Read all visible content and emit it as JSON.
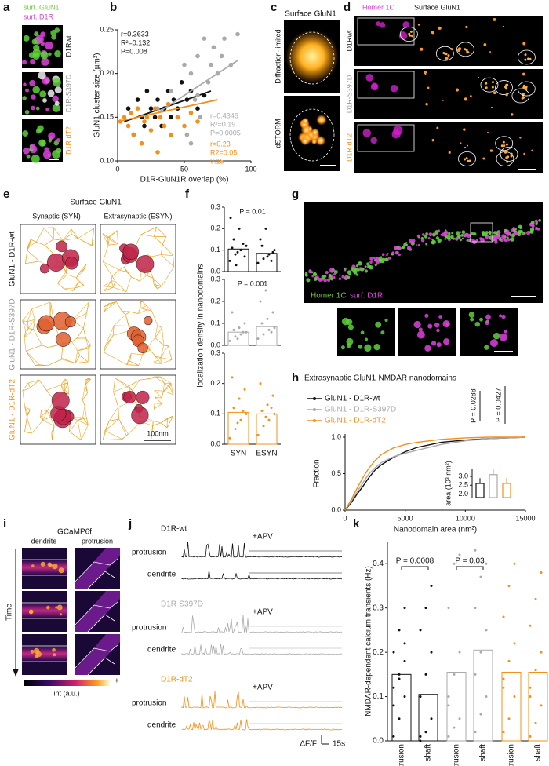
{
  "panel_labels": [
    "a",
    "b",
    "c",
    "d",
    "e",
    "f",
    "g",
    "h",
    "i",
    "j",
    "k"
  ],
  "a": {
    "legend": [
      "surf. GluN1",
      "surf. D1R"
    ],
    "rows": [
      "D1Rwt",
      "D1R-S397D",
      "D1R dT2"
    ]
  },
  "c": {
    "title": "Surface GluN1",
    "rows": [
      "Diffraction-limited",
      "dSTORM"
    ]
  },
  "d": {
    "legend": [
      "Homer 1C",
      "Surface GluN1"
    ],
    "rows": [
      "D1Rwt",
      "D1R-S397D",
      "D1R dT2"
    ]
  },
  "e": {
    "title": "Surface GluN1",
    "columns": [
      "Synaptic (SYN)",
      "Extrasynaptic (ESYN)"
    ],
    "rows": [
      "GluN1 - D1R-wt",
      "GluN1 - D1R-S397D",
      "GluN1 - D1R-dT2"
    ],
    "scale_bar": "100nm"
  },
  "g": {
    "legend": [
      "Homer 1C",
      "surf. D1R"
    ]
  },
  "i": {
    "title": "GCaMP6f",
    "columns": [
      "dendrite",
      "protrusion"
    ],
    "axis": "Time",
    "colorbar": {
      "label": "int (a.u.)",
      "high": "+"
    }
  },
  "j": {
    "groups": [
      {
        "name": "D1R-wt",
        "annotation": "+APV",
        "color": "#111111"
      },
      {
        "name": "D1R-S397D",
        "annotation": "+APV",
        "color": "#aaaaaa"
      },
      {
        "name": "D1R-dT2",
        "annotation": "+APV",
        "color": "#f39019"
      }
    ],
    "rows": [
      "protrusion",
      "dendrite"
    ],
    "scale": [
      "ΔF/F",
      "15s"
    ]
  },
  "chart_data": [
    {
      "type": "scatter",
      "xlabel": "D1R-GluN1R overlap (%)",
      "ylabel": "GluN1 cluster size (µm²)",
      "xlim": [
        0,
        100
      ],
      "xticks": [
        0,
        50,
        100
      ],
      "ylim": [
        0.1,
        0.25
      ],
      "yticks": [
        {
          "value": 0.1,
          "label": "0.10"
        },
        {
          "value": 0.15,
          "label": "0.15"
        },
        {
          "value": 0.2,
          "label": "0.20"
        },
        {
          "value": 0.25,
          "label": "0.25"
        }
      ],
      "series": [
        {
          "color": "#111111",
          "x": [
            8,
            12,
            15,
            18,
            20,
            22,
            25,
            28,
            30,
            33,
            35,
            38,
            40,
            42,
            45,
            48,
            52,
            55,
            60,
            65
          ],
          "values": [
            0.16,
            0.13,
            0.17,
            0.15,
            0.14,
            0.18,
            0.16,
            0.15,
            0.17,
            0.14,
            0.16,
            0.18,
            0.15,
            0.17,
            0.16,
            0.19,
            0.17,
            0.18,
            0.16,
            0.175
          ],
          "fit": {
            "x": [
              5,
              70
            ],
            "values": [
              0.145,
              0.18
            ]
          },
          "annotations": [
            "r=0.3633",
            "R²=0.132",
            "P=0.008"
          ]
        },
        {
          "color": "#aaaaaa",
          "x": [
            30,
            35,
            40,
            45,
            50,
            52,
            55,
            58,
            60,
            62,
            65,
            68,
            70,
            72,
            75,
            78,
            80,
            85,
            90,
            55,
            60
          ],
          "values": [
            0.16,
            0.14,
            0.18,
            0.15,
            0.21,
            0.13,
            0.2,
            0.17,
            0.22,
            0.15,
            0.24,
            0.19,
            0.21,
            0.23,
            0.2,
            0.22,
            0.24,
            0.21,
            0.245,
            0.12,
            0.175
          ],
          "fit": {
            "x": [
              30,
              90
            ],
            "values": [
              0.155,
              0.215
            ]
          },
          "annotations": [
            "r=0.4346",
            "R²=0.19",
            "P=0.0005"
          ]
        },
        {
          "color": "#f39019",
          "x": [
            2,
            5,
            8,
            10,
            12,
            15,
            18,
            20,
            22,
            25,
            28,
            30,
            32,
            35,
            38,
            40,
            45,
            50,
            55,
            60
          ],
          "values": [
            0.145,
            0.15,
            0.14,
            0.155,
            0.13,
            0.16,
            0.12,
            0.145,
            0.15,
            0.135,
            0.16,
            0.11,
            0.15,
            0.14,
            0.165,
            0.13,
            0.15,
            0.14,
            0.155,
            0.145
          ],
          "fit": {
            "x": [
              0,
              75
            ],
            "values": [
              0.145,
              0.17
            ]
          },
          "annotations": [
            "r=0.23",
            "R2=0.05",
            "0.15"
          ]
        }
      ]
    },
    {
      "type": "bar",
      "ylabel": "localization density in nanodomains",
      "categories": [
        "SYN",
        "ESYN"
      ],
      "ylim": [
        0,
        0.3
      ],
      "yticks": [
        {
          "value": 0,
          "label": "0.0"
        },
        {
          "value": 0.1,
          "label": "0.1"
        },
        {
          "value": 0.2,
          "label": "0.2"
        },
        {
          "value": 0.3,
          "label": "0.3"
        }
      ],
      "subplots": [
        {
          "color": "#111111",
          "annotation": "P = 0.01",
          "values": [
            0.105,
            0.085
          ],
          "points": [
            [
              0.05,
              0.08,
              0.1,
              0.12,
              0.15,
              0.2,
              0.07,
              0.11,
              0.09,
              0.13,
              0.25,
              0.03
            ],
            [
              0.04,
              0.06,
              0.08,
              0.1,
              0.12,
              0.07,
              0.09,
              0.15,
              0.2,
              0.05
            ]
          ]
        },
        {
          "color": "#aaaaaa",
          "annotation": "P = 0.001",
          "values": [
            0.06,
            0.085
          ],
          "points": [
            [
              0.02,
              0.04,
              0.05,
              0.06,
              0.07,
              0.08,
              0.1,
              0.15,
              0.03,
              0.06
            ],
            [
              0.03,
              0.05,
              0.07,
              0.08,
              0.1,
              0.12,
              0.15,
              0.2,
              0.25,
              0.06
            ]
          ]
        },
        {
          "color": "#f39019",
          "values": [
            0.105,
            0.1
          ],
          "points": [
            [
              0.02,
              0.05,
              0.08,
              0.1,
              0.12,
              0.15,
              0.18,
              0.22,
              0.07,
              0.11
            ],
            [
              0.03,
              0.06,
              0.08,
              0.1,
              0.11,
              0.13,
              0.16,
              0.2,
              0.09,
              0.12
            ]
          ]
        }
      ]
    },
    {
      "type": "line",
      "title": "Extrasynaptic GluN1-NMDAR nanodomains",
      "xlabel": "Nanodomain area (nm²)",
      "ylabel": "Fraction",
      "xlim": [
        0,
        15000
      ],
      "xticks": [
        0,
        5000,
        10000,
        15000
      ],
      "ylim": [
        0,
        1
      ],
      "yticks": [
        {
          "value": 0,
          "label": "0.0"
        },
        {
          "value": 0.5,
          "label": "0.5"
        },
        {
          "value": 1,
          "label": "1.0"
        }
      ],
      "annotations": [
        "P = 0.0288",
        "P = 0.0427"
      ],
      "series": [
        {
          "name": "GluN1 - D1R-wt",
          "color": "#111111",
          "x": [
            0,
            500,
            1000,
            1500,
            2000,
            2500,
            3000,
            4000,
            5000,
            6000,
            8000,
            10000,
            12000,
            15000
          ],
          "values": [
            0,
            0.1,
            0.22,
            0.33,
            0.45,
            0.55,
            0.62,
            0.72,
            0.8,
            0.86,
            0.93,
            0.96,
            0.98,
            1
          ]
        },
        {
          "name": "GluN1 - D1R-S397D",
          "color": "#aaaaaa",
          "x": [
            0,
            500,
            1000,
            1500,
            2000,
            2500,
            3000,
            4000,
            5000,
            6000,
            8000,
            10000,
            12000,
            15000
          ],
          "values": [
            0,
            0.12,
            0.25,
            0.38,
            0.5,
            0.58,
            0.65,
            0.73,
            0.78,
            0.82,
            0.9,
            0.95,
            0.98,
            1
          ]
        },
        {
          "name": "GluN1 - D1R-dT2",
          "color": "#f39019",
          "x": [
            0,
            500,
            1000,
            1500,
            2000,
            2500,
            3000,
            4000,
            5000,
            6000,
            8000,
            10000,
            12000,
            15000
          ],
          "values": [
            0,
            0.14,
            0.3,
            0.45,
            0.58,
            0.68,
            0.76,
            0.85,
            0.9,
            0.93,
            0.97,
            0.99,
            1,
            1
          ]
        }
      ],
      "inset": {
        "type": "bar",
        "ylabel": "area (10³ nm²)",
        "ylim": [
          1.8,
          3.4
        ],
        "yticks": [
          {
            "value": 2,
            "label": "2.0"
          },
          {
            "value": 2.5,
            "label": "2.5"
          },
          {
            "value": 3,
            "label": "3.0"
          }
        ],
        "values": [
          2.6,
          3.1,
          2.6
        ],
        "errors": [
          0.3,
          0.3,
          0.3
        ],
        "colors": [
          "#111111",
          "#aaaaaa",
          "#f39019"
        ]
      }
    },
    {
      "type": "bar",
      "ylabel": "NMDAR-dependent calcium transients (Hz)",
      "categories": [
        "protrusion",
        "shaft",
        "protrusion",
        "shaft",
        "protrusion",
        "shaft"
      ],
      "colors": [
        "#111111",
        "#111111",
        "#aaaaaa",
        "#aaaaaa",
        "#f39019",
        "#f39019"
      ],
      "values": [
        0.15,
        0.105,
        0.155,
        0.205,
        0.155,
        0.155
      ],
      "points": [
        [
          0.01,
          0.05,
          0.1,
          0.12,
          0.15,
          0.18,
          0.2,
          0.25,
          0.3,
          0.08,
          0.14,
          0.22
        ],
        [
          0,
          0.02,
          0.05,
          0.1,
          0.15,
          0.2,
          0.25,
          0.3,
          0.35,
          0.01
        ],
        [
          0.01,
          0.03,
          0.05,
          0.1,
          0.15,
          0.2,
          0.3,
          0.4,
          0.42,
          0.08
        ],
        [
          0.02,
          0.06,
          0.1,
          0.15,
          0.2,
          0.25,
          0.3,
          0.37,
          0.4,
          0.43
        ],
        [
          0.02,
          0.05,
          0.1,
          0.14,
          0.18,
          0.22,
          0.28,
          0.35,
          0.4,
          0.12
        ],
        [
          0.01,
          0.04,
          0.08,
          0.12,
          0.16,
          0.2,
          0.26,
          0.32,
          0.38,
          0.1
        ]
      ],
      "ylim": [
        0,
        0.45
      ],
      "yticks": [
        {
          "value": 0,
          "label": "0.0"
        },
        {
          "value": 0.1,
          "label": "0.1"
        },
        {
          "value": 0.2,
          "label": "0.2"
        },
        {
          "value": 0.3,
          "label": "0.3"
        },
        {
          "value": 0.4,
          "label": "0.4"
        }
      ],
      "annotations": [
        "P = 0.0008",
        "P = 0.03"
      ]
    }
  ]
}
